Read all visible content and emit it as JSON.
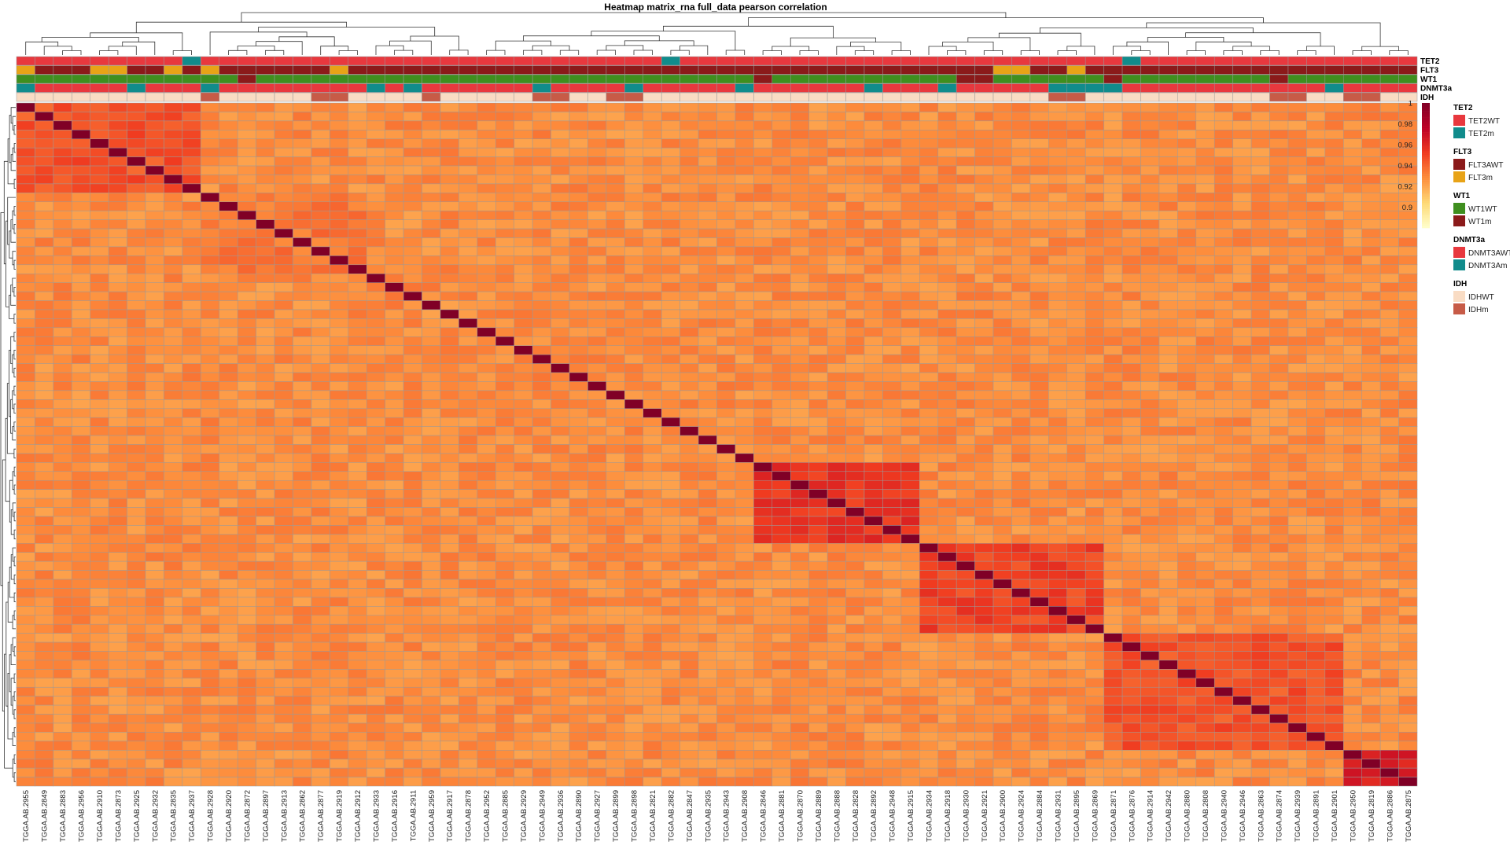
{
  "chart_data": {
    "type": "heatmap",
    "title": "Heatmap matrix_rna full_data pearson correlation",
    "samples": [
      "TGGA.AB.2955",
      "TGGA.AB.2849",
      "TGGA.AB.2883",
      "TGGA.AB.2956",
      "TGGA.AB.2910",
      "TGGA.AB.2873",
      "TGGA.AB.2925",
      "TGGA.AB.2932",
      "TGGA.AB.2835",
      "TGGA.AB.2937",
      "TGGA.AB.2928",
      "TGGA.AB.2920",
      "TGGA.AB.2872",
      "TGGA.AB.2897",
      "TGGA.AB.2913",
      "TGGA.AB.2862",
      "TGGA.AB.2877",
      "TGGA.AB.2919",
      "TGGA.AB.2912",
      "TGGA.AB.2933",
      "TGGA.AB.2916",
      "TGGA.AB.2911",
      "TGGA.AB.2959",
      "TGGA.AB.2917",
      "TGGA.AB.2878",
      "TGGA.AB.2952",
      "TGGA.AB.2885",
      "TGGA.AB.2929",
      "TGGA.AB.2949",
      "TGGA.AB.2936",
      "TGGA.AB.2890",
      "TGGA.AB.2927",
      "TGGA.AB.2899",
      "TGGA.AB.2898",
      "TGGA.AB.2821",
      "TGGA.AB.2882",
      "TGGA.AB.2847",
      "TGGA.AB.2935",
      "TGGA.AB.2943",
      "TGGA.AB.2908",
      "TGGA.AB.2846",
      "TGGA.AB.2881",
      "TGGA.AB.2870",
      "TGGA.AB.2889",
      "TGGA.AB.2888",
      "TGGA.AB.2828",
      "TGGA.AB.2892",
      "TGGA.AB.2948",
      "TGGA.AB.2915",
      "TGGA.AB.2934",
      "TGGA.AB.2918",
      "TGGA.AB.2930",
      "TGGA.AB.2921",
      "TGGA.AB.2900",
      "TGGA.AB.2924",
      "TGGA.AB.2884",
      "TGGA.AB.2931",
      "TGGA.AB.2895",
      "TGGA.AB.2869",
      "TGGA.AB.2871",
      "TGGA.AB.2876",
      "TGGA.AB.2914",
      "TGGA.AB.2942",
      "TGGA.AB.2880",
      "TGGA.AB.2808",
      "TGGA.AB.2940",
      "TGGA.AB.2946",
      "TGGA.AB.2863",
      "TGGA.AB.2874",
      "TGGA.AB.2939",
      "TGGA.AB.2891",
      "TGGA.AB.2901",
      "TGGA.AB.2950",
      "TGGA.AB.2819",
      "TGGA.AB.2886",
      "TGGA.AB.2875"
    ],
    "scale": {
      "min": 0.88,
      "max": 1.0,
      "ticks": [
        1,
        0.98,
        0.96,
        0.94,
        0.92,
        0.9
      ],
      "colors": [
        "#ffffcc",
        "#fed976",
        "#fd8d3c",
        "#f03b20",
        "#bd0026",
        "#800026"
      ]
    },
    "cluster_blocks": [
      {
        "start": 0,
        "end": 9,
        "value": 0.945
      },
      {
        "start": 10,
        "end": 18,
        "value": 0.935
      },
      {
        "start": 40,
        "end": 48,
        "value": 0.955
      },
      {
        "start": 49,
        "end": 58,
        "value": 0.95
      },
      {
        "start": 59,
        "end": 71,
        "value": 0.945
      },
      {
        "start": 72,
        "end": 75,
        "value": 0.965
      }
    ],
    "annotations": [
      {
        "name": "TET2",
        "colors": {
          "TET2WT": "#e8383e",
          "TET2m": "#118c8c"
        },
        "values": [
          "TET2WT",
          "TET2WT",
          "TET2WT",
          "TET2WT",
          "TET2WT",
          "TET2WT",
          "TET2WT",
          "TET2WT",
          "TET2WT",
          "TET2m",
          "TET2WT",
          "TET2WT",
          "TET2WT",
          "TET2WT",
          "TET2WT",
          "TET2WT",
          "TET2WT",
          "TET2WT",
          "TET2WT",
          "TET2WT",
          "TET2WT",
          "TET2WT",
          "TET2WT",
          "TET2WT",
          "TET2WT",
          "TET2WT",
          "TET2WT",
          "TET2WT",
          "TET2WT",
          "TET2WT",
          "TET2WT",
          "TET2WT",
          "TET2WT",
          "TET2WT",
          "TET2WT",
          "TET2m",
          "TET2WT",
          "TET2WT",
          "TET2WT",
          "TET2WT",
          "TET2WT",
          "TET2WT",
          "TET2WT",
          "TET2WT",
          "TET2WT",
          "TET2WT",
          "TET2WT",
          "TET2WT",
          "TET2WT",
          "TET2WT",
          "TET2WT",
          "TET2WT",
          "TET2WT",
          "TET2WT",
          "TET2WT",
          "TET2WT",
          "TET2WT",
          "TET2WT",
          "TET2WT",
          "TET2WT",
          "TET2m",
          "TET2WT",
          "TET2WT",
          "TET2WT",
          "TET2WT",
          "TET2WT",
          "TET2WT",
          "TET2WT",
          "TET2WT",
          "TET2WT",
          "TET2WT",
          "TET2WT",
          "TET2WT",
          "TET2WT",
          "TET2WT",
          "TET2WT"
        ]
      },
      {
        "name": "FLT3",
        "colors": {
          "FLT3AWT": "#8b1a1a",
          "FLT3m": "#e8a317"
        },
        "values": [
          "FLT3m",
          "FLT3AWT",
          "FLT3AWT",
          "FLT3AWT",
          "FLT3m",
          "FLT3m",
          "FLT3AWT",
          "FLT3AWT",
          "FLT3m",
          "FLT3AWT",
          "FLT3m",
          "FLT3AWT",
          "FLT3AWT",
          "FLT3AWT",
          "FLT3AWT",
          "FLT3AWT",
          "FLT3AWT",
          "FLT3m",
          "FLT3AWT",
          "FLT3AWT",
          "FLT3AWT",
          "FLT3AWT",
          "FLT3AWT",
          "FLT3AWT",
          "FLT3AWT",
          "FLT3AWT",
          "FLT3AWT",
          "FLT3AWT",
          "FLT3AWT",
          "FLT3AWT",
          "FLT3AWT",
          "FLT3AWT",
          "FLT3AWT",
          "FLT3AWT",
          "FLT3AWT",
          "FLT3AWT",
          "FLT3AWT",
          "FLT3AWT",
          "FLT3AWT",
          "FLT3AWT",
          "FLT3AWT",
          "FLT3AWT",
          "FLT3AWT",
          "FLT3AWT",
          "FLT3AWT",
          "FLT3AWT",
          "FLT3AWT",
          "FLT3AWT",
          "FLT3AWT",
          "FLT3AWT",
          "FLT3AWT",
          "FLT3AWT",
          "FLT3AWT",
          "FLT3m",
          "FLT3m",
          "FLT3AWT",
          "FLT3AWT",
          "FLT3m",
          "FLT3AWT",
          "FLT3AWT",
          "FLT3AWT",
          "FLT3AWT",
          "FLT3AWT",
          "FLT3AWT",
          "FLT3AWT",
          "FLT3AWT",
          "FLT3AWT",
          "FLT3AWT",
          "FLT3AWT",
          "FLT3AWT",
          "FLT3AWT",
          "FLT3AWT",
          "FLT3AWT",
          "FLT3AWT",
          "FLT3AWT",
          "FLT3AWT"
        ]
      },
      {
        "name": "WT1",
        "colors": {
          "WT1WT": "#3f8f1f",
          "WT1m": "#8b1a1a"
        },
        "values": [
          "WT1WT",
          "WT1WT",
          "WT1WT",
          "WT1WT",
          "WT1WT",
          "WT1WT",
          "WT1WT",
          "WT1WT",
          "WT1WT",
          "WT1WT",
          "WT1WT",
          "WT1WT",
          "WT1m",
          "WT1WT",
          "WT1WT",
          "WT1WT",
          "WT1WT",
          "WT1WT",
          "WT1WT",
          "WT1WT",
          "WT1WT",
          "WT1WT",
          "WT1WT",
          "WT1WT",
          "WT1WT",
          "WT1WT",
          "WT1WT",
          "WT1WT",
          "WT1WT",
          "WT1WT",
          "WT1WT",
          "WT1WT",
          "WT1WT",
          "WT1WT",
          "WT1WT",
          "WT1WT",
          "WT1WT",
          "WT1WT",
          "WT1WT",
          "WT1WT",
          "WT1m",
          "WT1WT",
          "WT1WT",
          "WT1WT",
          "WT1WT",
          "WT1WT",
          "WT1WT",
          "WT1WT",
          "WT1WT",
          "WT1WT",
          "WT1WT",
          "WT1m",
          "WT1m",
          "WT1WT",
          "WT1WT",
          "WT1WT",
          "WT1WT",
          "WT1WT",
          "WT1WT",
          "WT1m",
          "WT1WT",
          "WT1WT",
          "WT1WT",
          "WT1WT",
          "WT1WT",
          "WT1WT",
          "WT1WT",
          "WT1WT",
          "WT1m",
          "WT1WT",
          "WT1WT",
          "WT1WT",
          "WT1WT",
          "WT1WT",
          "WT1WT",
          "WT1WT"
        ]
      },
      {
        "name": "DNMT3a",
        "colors": {
          "DNMT3AWT": "#e8383e",
          "DNMT3Am": "#118c8c"
        },
        "values": [
          "DNMT3Am",
          "DNMT3AWT",
          "DNMT3AWT",
          "DNMT3AWT",
          "DNMT3AWT",
          "DNMT3AWT",
          "DNMT3Am",
          "DNMT3AWT",
          "DNMT3AWT",
          "DNMT3AWT",
          "DNMT3Am",
          "DNMT3AWT",
          "DNMT3AWT",
          "DNMT3AWT",
          "DNMT3AWT",
          "DNMT3AWT",
          "DNMT3AWT",
          "DNMT3AWT",
          "DNMT3AWT",
          "DNMT3Am",
          "DNMT3AWT",
          "DNMT3Am",
          "DNMT3AWT",
          "DNMT3AWT",
          "DNMT3AWT",
          "DNMT3AWT",
          "DNMT3AWT",
          "DNMT3AWT",
          "DNMT3Am",
          "DNMT3AWT",
          "DNMT3AWT",
          "DNMT3AWT",
          "DNMT3AWT",
          "DNMT3Am",
          "DNMT3AWT",
          "DNMT3AWT",
          "DNMT3AWT",
          "DNMT3AWT",
          "DNMT3AWT",
          "DNMT3Am",
          "DNMT3AWT",
          "DNMT3AWT",
          "DNMT3AWT",
          "DNMT3AWT",
          "DNMT3AWT",
          "DNMT3AWT",
          "DNMT3Am",
          "DNMT3AWT",
          "DNMT3AWT",
          "DNMT3AWT",
          "DNMT3Am",
          "DNMT3AWT",
          "DNMT3AWT",
          "DNMT3AWT",
          "DNMT3AWT",
          "DNMT3AWT",
          "DNMT3Am",
          "DNMT3Am",
          "DNMT3Am",
          "DNMT3Am",
          "DNMT3AWT",
          "DNMT3AWT",
          "DNMT3AWT",
          "DNMT3AWT",
          "DNMT3AWT",
          "DNMT3AWT",
          "DNMT3AWT",
          "DNMT3AWT",
          "DNMT3AWT",
          "DNMT3AWT",
          "DNMT3AWT",
          "DNMT3Am",
          "DNMT3AWT",
          "DNMT3AWT",
          "DNMT3AWT",
          "DNMT3AWT"
        ]
      },
      {
        "name": "IDH",
        "colors": {
          "IDHWT": "#f9dcc4",
          "IDHm": "#c75b47"
        },
        "values": [
          "IDHWT",
          "IDHWT",
          "IDHWT",
          "IDHWT",
          "IDHWT",
          "IDHWT",
          "IDHWT",
          "IDHWT",
          "IDHWT",
          "IDHWT",
          "IDHm",
          "IDHWT",
          "IDHWT",
          "IDHWT",
          "IDHWT",
          "IDHWT",
          "IDHm",
          "IDHm",
          "IDHWT",
          "IDHWT",
          "IDHWT",
          "IDHWT",
          "IDHm",
          "IDHWT",
          "IDHWT",
          "IDHWT",
          "IDHWT",
          "IDHWT",
          "IDHm",
          "IDHm",
          "IDHWT",
          "IDHWT",
          "IDHm",
          "IDHm",
          "IDHWT",
          "IDHWT",
          "IDHWT",
          "IDHWT",
          "IDHWT",
          "IDHWT",
          "IDHWT",
          "IDHWT",
          "IDHWT",
          "IDHWT",
          "IDHWT",
          "IDHWT",
          "IDHWT",
          "IDHWT",
          "IDHWT",
          "IDHWT",
          "IDHWT",
          "IDHWT",
          "IDHWT",
          "IDHWT",
          "IDHWT",
          "IDHWT",
          "IDHm",
          "IDHm",
          "IDHWT",
          "IDHWT",
          "IDHWT",
          "IDHWT",
          "IDHWT",
          "IDHWT",
          "IDHWT",
          "IDHWT",
          "IDHWT",
          "IDHWT",
          "IDHm",
          "IDHm",
          "IDHWT",
          "IDHWT",
          "IDHm",
          "IDHm",
          "IDHWT",
          "IDHWT"
        ]
      }
    ],
    "legends": [
      {
        "title": "TET2",
        "items": [
          "TET2WT",
          "TET2m"
        ]
      },
      {
        "title": "FLT3",
        "items": [
          "FLT3AWT",
          "FLT3m"
        ]
      },
      {
        "title": "WT1",
        "items": [
          "WT1WT",
          "WT1m"
        ]
      },
      {
        "title": "DNMT3a",
        "items": [
          "DNMT3AWT",
          "DNMT3Am"
        ]
      },
      {
        "title": "IDH",
        "items": [
          "IDHWT",
          "IDHm"
        ]
      }
    ]
  }
}
